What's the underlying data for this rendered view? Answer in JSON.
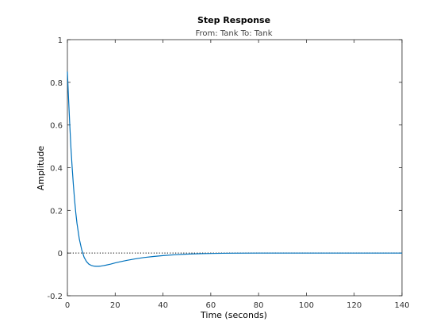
{
  "chart_data": {
    "type": "line",
    "title": "Step Response",
    "subtitle": "From: Tank  To: Tank",
    "xlabel": "Time (seconds)",
    "ylabel": "Amplitude",
    "xlim": [
      0,
      140
    ],
    "ylim": [
      -0.2,
      1
    ],
    "xticks": [
      0,
      20,
      40,
      60,
      80,
      100,
      120,
      140
    ],
    "yticks": [
      -0.2,
      0,
      0.2,
      0.4,
      0.6,
      0.8,
      1
    ],
    "xtick_labels": [
      "0",
      "20",
      "40",
      "60",
      "80",
      "100",
      "120",
      "140"
    ],
    "ytick_labels": [
      "-0.2",
      "0",
      "0.2",
      "0.4",
      "0.6",
      "0.8",
      "1"
    ],
    "grid": false,
    "reference_line": {
      "y": 0,
      "style": "dotted",
      "color": "#000000"
    },
    "series": [
      {
        "color": "#0072bd",
        "x": [
          0,
          0.5,
          1,
          1.5,
          2,
          2.5,
          3,
          3.5,
          4,
          5,
          6,
          7,
          8,
          9,
          10,
          11,
          12,
          13,
          14,
          15,
          16,
          18,
          20,
          22,
          25,
          28,
          32,
          36,
          40,
          45,
          50,
          55,
          60,
          65,
          70,
          80,
          90,
          100,
          110,
          120,
          130,
          140
        ],
        "y": [
          0.85,
          0.72,
          0.6,
          0.49,
          0.4,
          0.32,
          0.25,
          0.19,
          0.14,
          0.065,
          0.015,
          -0.02,
          -0.04,
          -0.052,
          -0.058,
          -0.061,
          -0.062,
          -0.062,
          -0.061,
          -0.059,
          -0.057,
          -0.052,
          -0.046,
          -0.041,
          -0.034,
          -0.028,
          -0.021,
          -0.016,
          -0.012,
          -0.008,
          -0.005,
          -0.003,
          -0.002,
          -0.001,
          -0.0005,
          0,
          0,
          0,
          0,
          0,
          0,
          0
        ]
      }
    ]
  }
}
